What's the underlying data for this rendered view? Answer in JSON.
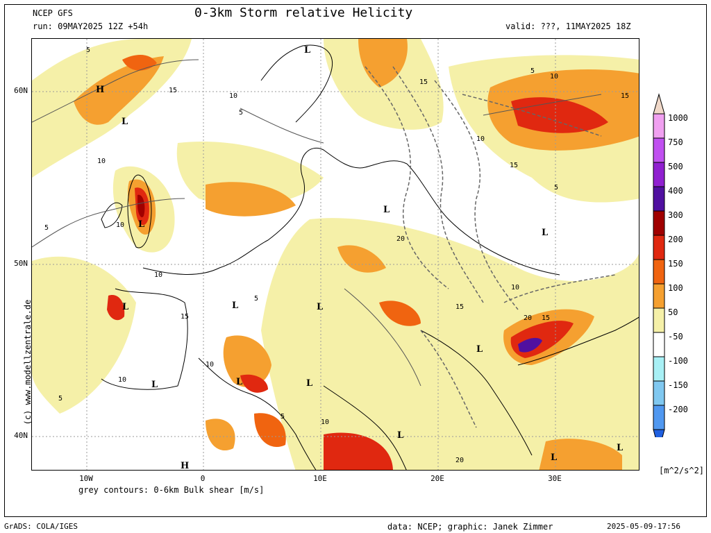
{
  "header": {
    "model": "NCEP GFS",
    "run": "run: 09MAY2025 12Z +54h",
    "title": "0-3km Storm relative Helicity",
    "valid": "valid: ???, 11MAY2025 18Z"
  },
  "map": {
    "lat_labels": [
      "60N",
      "50N",
      "40N"
    ],
    "lon_labels": [
      "10W",
      "0",
      "10E",
      "20E",
      "30E"
    ],
    "contour_note": "grey contours: 0-6km Bulk shear [m/s]",
    "pressure_labels": [
      "L",
      "L",
      "L",
      "L",
      "L",
      "L",
      "L",
      "L",
      "L",
      "L",
      "L",
      "L",
      "L",
      "L",
      "L",
      "H",
      "H"
    ],
    "contour_values": [
      "5",
      "10",
      "15",
      "5",
      "10",
      "15",
      "5",
      "10",
      "20",
      "10",
      "15",
      "5",
      "10",
      "5",
      "15",
      "10",
      "20",
      "15",
      "10",
      "15",
      "5",
      "10",
      "10",
      "15",
      "10",
      "20",
      "5",
      "5"
    ]
  },
  "legend": {
    "levels": [
      "1000",
      "750",
      "500",
      "400",
      "300",
      "200",
      "150",
      "100",
      "50",
      "-50",
      "-100",
      "-150",
      "-200"
    ],
    "colors": [
      "#f0d8c8",
      "#f0a0f0",
      "#c050f0",
      "#9020d0",
      "#5010a0",
      "#a00000",
      "#e02810",
      "#f06410",
      "#f5a030",
      "#f5f0a8",
      "#ffffff",
      "#a8f0f5",
      "#80c8f0",
      "#5098f0",
      "#2060e0"
    ],
    "unit": "[m^2/s^2]"
  },
  "watermark": "(c) www.modellzentrale.de",
  "footer": {
    "left": "GrADS: COLA/IGES",
    "center": "data: NCEP; graphic: Janek Zimmer",
    "right": "2025-05-09-17:56"
  }
}
